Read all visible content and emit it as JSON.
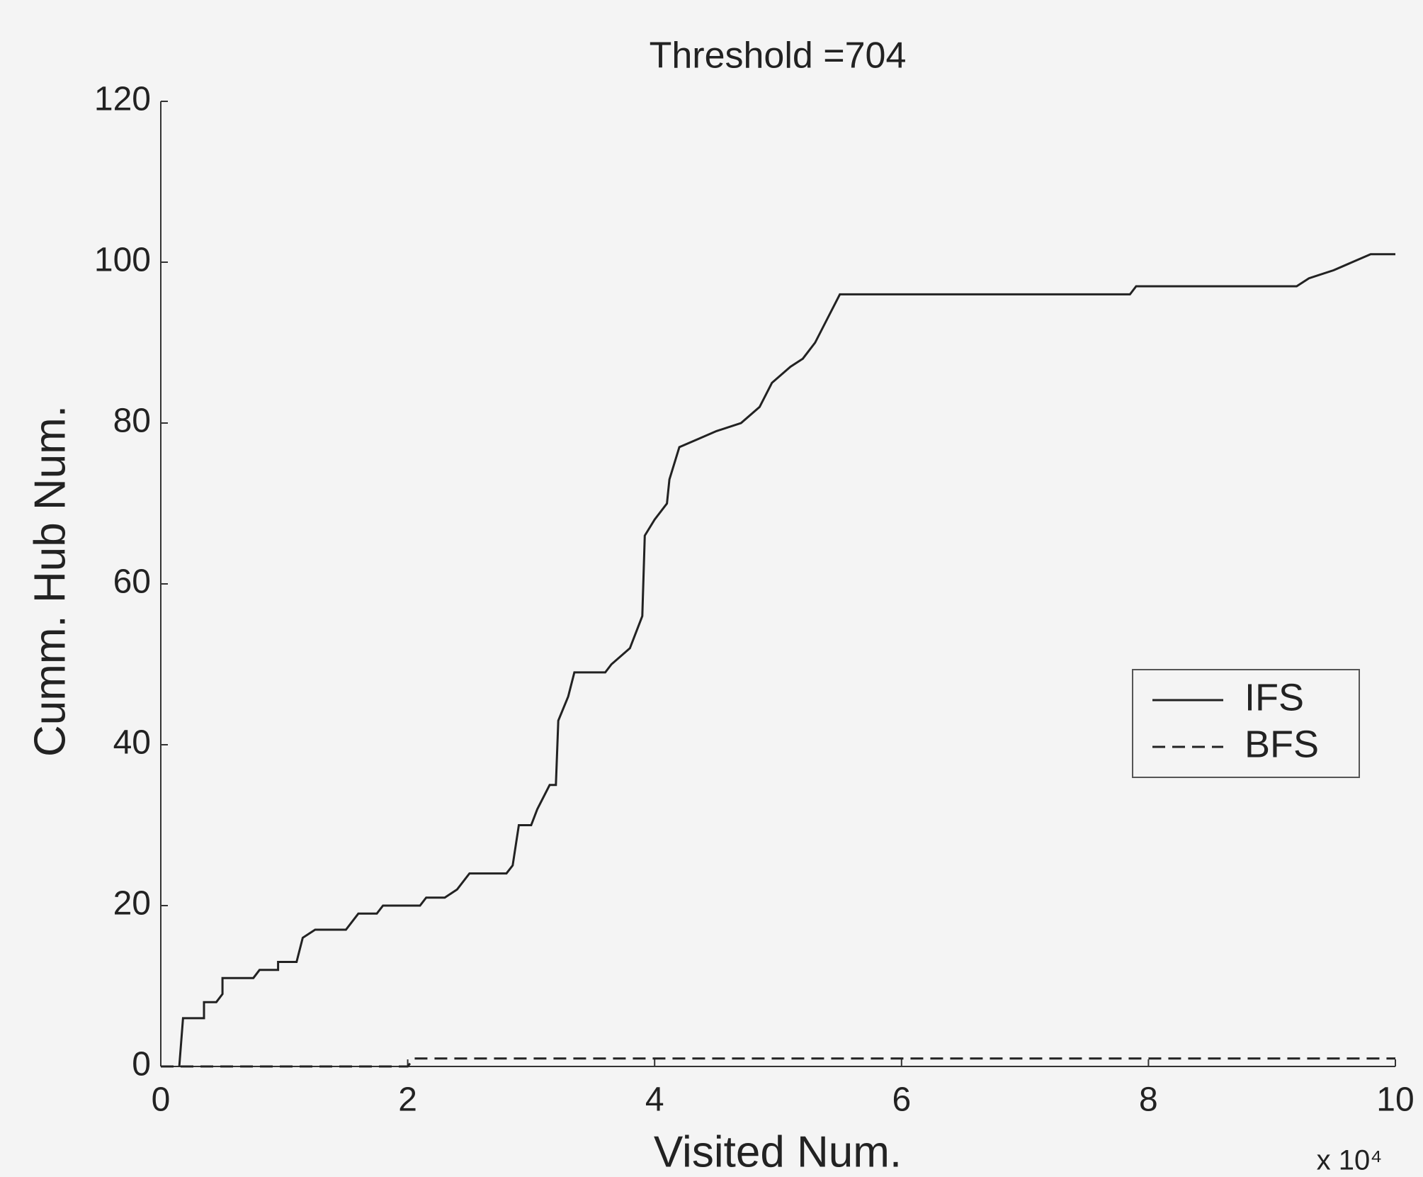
{
  "chart_data": {
    "type": "line",
    "title": "Threshold =704",
    "x_label": "Visited Num.",
    "y_label": "Cumm. Hub Num.",
    "x_multiplier": "x 10⁴",
    "xlim": [
      0,
      10
    ],
    "xticks": [
      0,
      2,
      4,
      6,
      8,
      10
    ],
    "ylim": [
      0,
      120
    ],
    "yticks": [
      0,
      20,
      40,
      60,
      80,
      100,
      120
    ],
    "grid": false,
    "legend": "east",
    "series": [
      {
        "name": "IFS",
        "color": "#222222",
        "dash": "solid",
        "x": [
          0.15,
          0.18,
          0.35,
          0.35,
          0.45,
          0.5,
          0.5,
          0.75,
          0.8,
          0.95,
          0.95,
          1.1,
          1.15,
          1.25,
          1.5,
          1.6,
          1.75,
          1.8,
          2.1,
          2.15,
          2.3,
          2.4,
          2.5,
          2.8,
          2.85,
          2.9,
          3.0,
          3.05,
          3.15,
          3.2,
          3.22,
          3.3,
          3.35,
          3.6,
          3.65,
          3.8,
          3.9,
          3.92,
          4.0,
          4.1,
          4.12,
          4.2,
          4.35,
          4.5,
          4.7,
          4.85,
          4.95,
          5.1,
          5.2,
          5.3,
          5.4,
          5.5,
          7.85,
          7.9,
          9.2,
          9.3,
          9.5,
          9.65,
          9.8,
          10
        ],
        "values": [
          0,
          6,
          6,
          8,
          8,
          9,
          11,
          11,
          12,
          12,
          13,
          13,
          16,
          17,
          17,
          19,
          19,
          20,
          20,
          21,
          21,
          22,
          24,
          24,
          25,
          30,
          30,
          32,
          35,
          35,
          43,
          46,
          49,
          49,
          50,
          52,
          56,
          66,
          68,
          70,
          73,
          77,
          78,
          79,
          80,
          82,
          85,
          87,
          88,
          90,
          93,
          96,
          96,
          97,
          97,
          98,
          99,
          100,
          101,
          101
        ]
      },
      {
        "name": "BFS",
        "color": "#222222",
        "dash": "dashed",
        "x": [
          0,
          2.0,
          2.05,
          10
        ],
        "values": [
          0,
          0,
          1,
          1
        ]
      }
    ]
  }
}
